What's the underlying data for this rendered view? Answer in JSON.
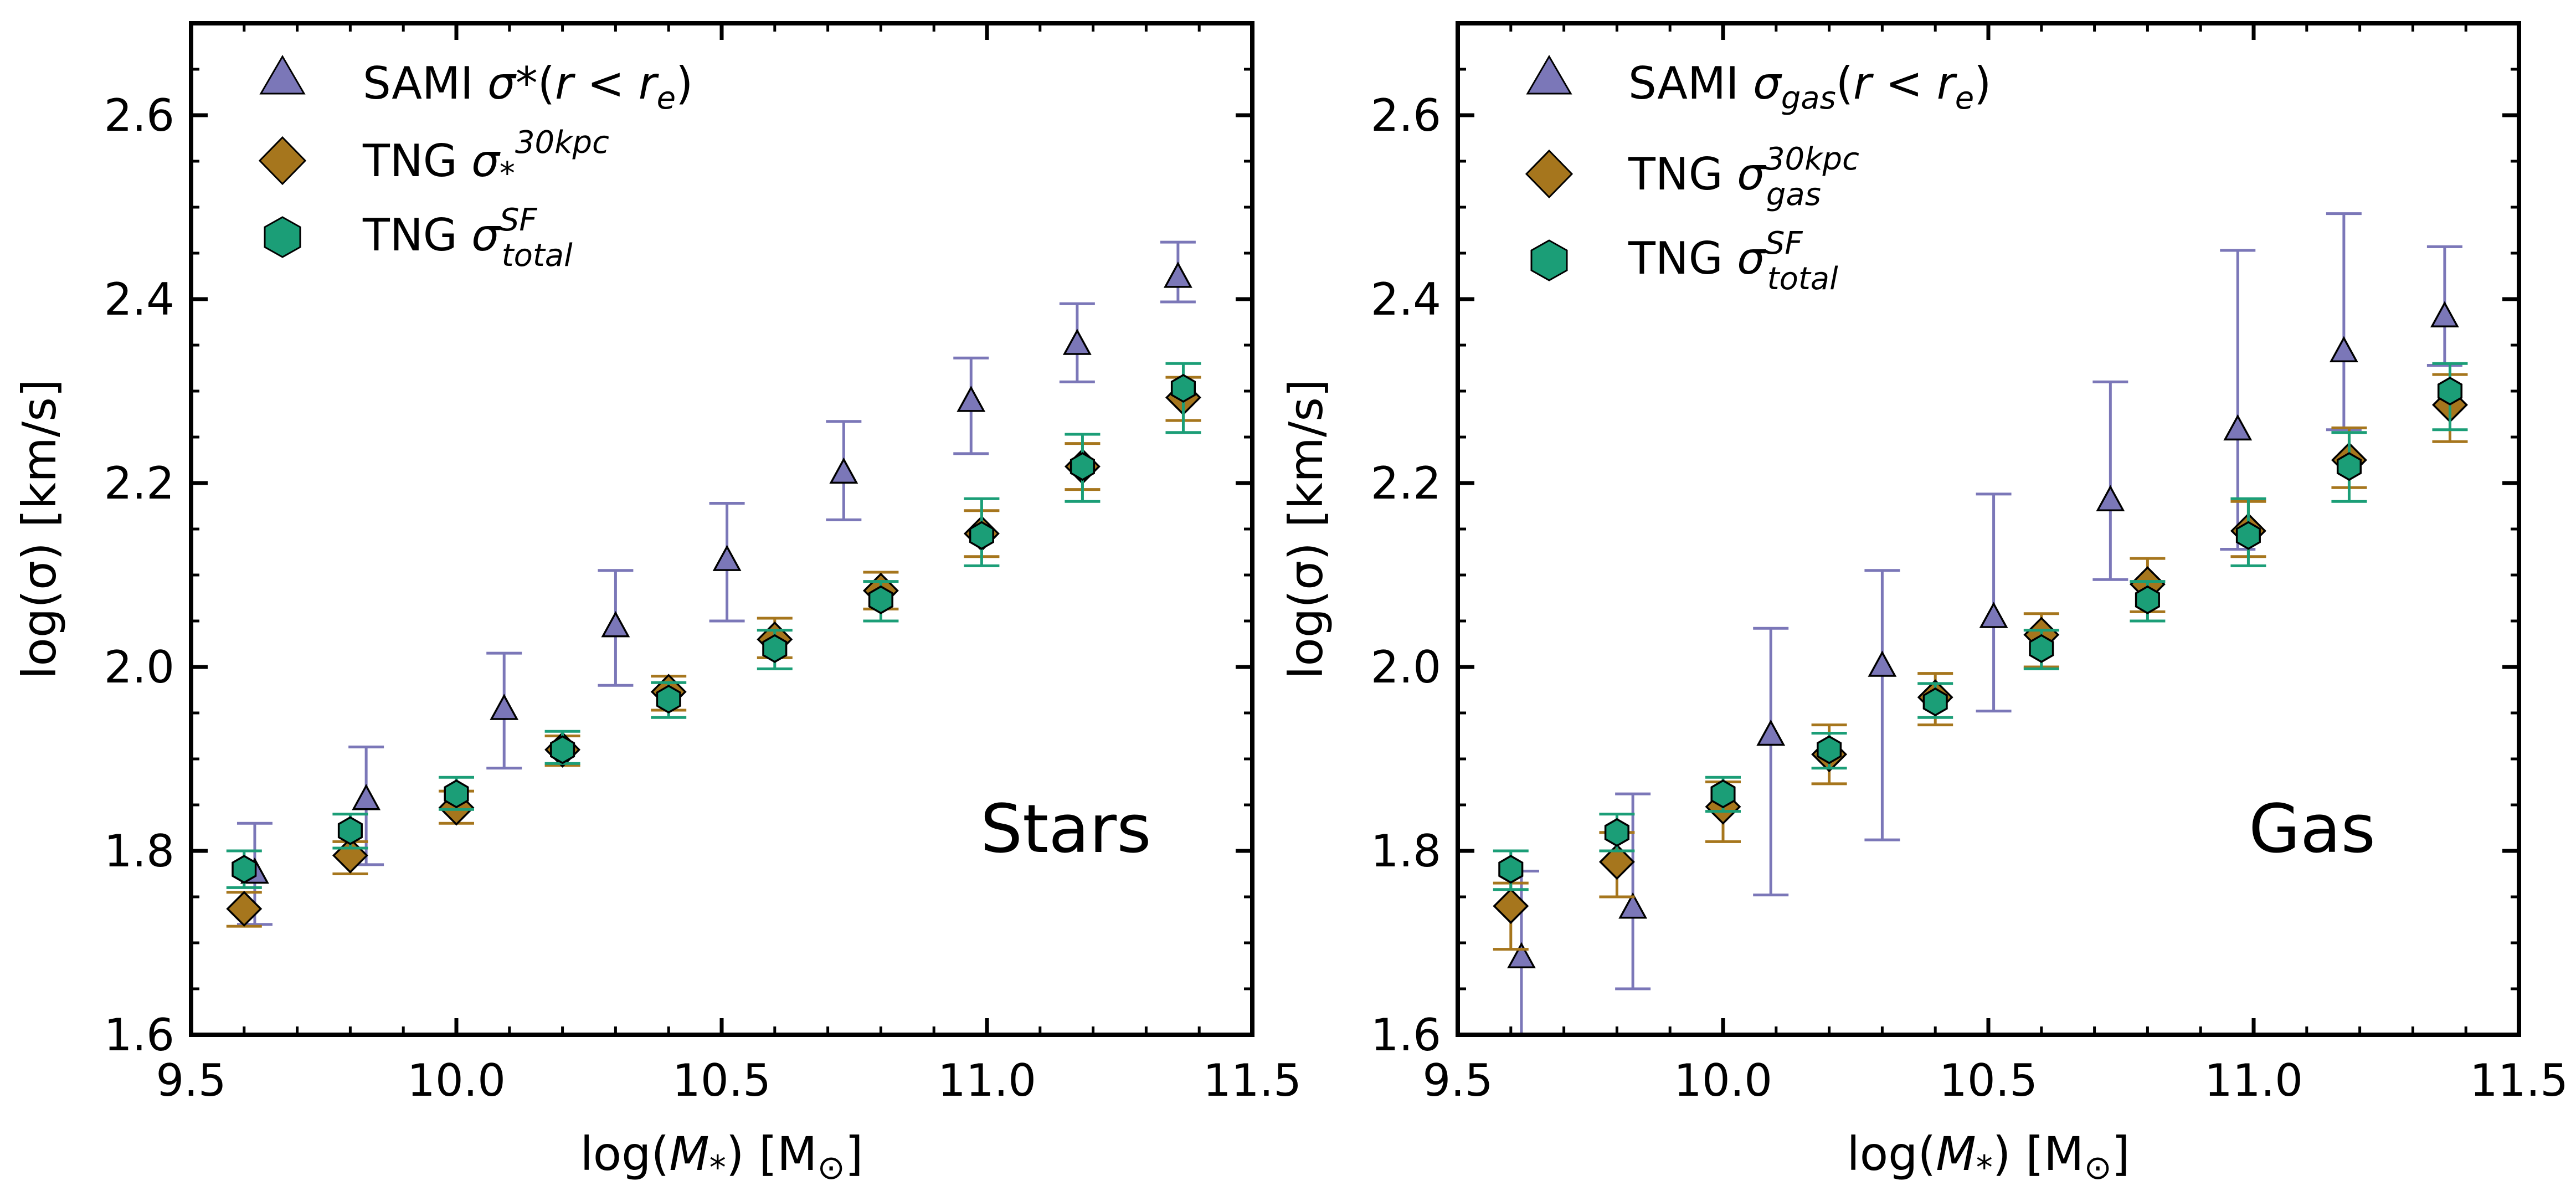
{
  "colors": {
    "sami": "#7b77b8",
    "tng_30kpc": "#a6761d",
    "tng_sf": "#1b9e77"
  },
  "chart_data": [
    {
      "type": "scatter",
      "panel_label": "Stars",
      "xlabel": "log(M*) [M⊙]",
      "ylabel": "log(σ) [km/s]",
      "xlim": [
        9.5,
        11.5
      ],
      "ylim": [
        1.6,
        2.7
      ],
      "xticks": [
        "9.5",
        "10.0",
        "10.5",
        "11.0",
        "11.5"
      ],
      "yticks": [
        "1.6",
        "1.8",
        "2.0",
        "2.2",
        "2.4",
        "2.6"
      ],
      "legend_position": "top-left",
      "series": [
        {
          "name": "SAMI σ*(r < re)",
          "marker": "triangle",
          "points": [
            {
              "x": 9.62,
              "y": 1.775,
              "lo": 1.72,
              "hi": 1.83
            },
            {
              "x": 9.83,
              "y": 1.855,
              "lo": 1.785,
              "hi": 1.913
            },
            {
              "x": 10.09,
              "y": 1.953,
              "lo": 1.89,
              "hi": 2.015
            },
            {
              "x": 10.3,
              "y": 2.043,
              "lo": 1.98,
              "hi": 2.105
            },
            {
              "x": 10.51,
              "y": 2.115,
              "lo": 2.05,
              "hi": 2.178
            },
            {
              "x": 10.73,
              "y": 2.21,
              "lo": 2.16,
              "hi": 2.267
            },
            {
              "x": 10.97,
              "y": 2.288,
              "lo": 2.232,
              "hi": 2.336
            },
            {
              "x": 11.17,
              "y": 2.35,
              "lo": 2.31,
              "hi": 2.395
            },
            {
              "x": 11.36,
              "y": 2.423,
              "lo": 2.397,
              "hi": 2.462
            }
          ]
        },
        {
          "name": "TNG σ*^30kpc",
          "marker": "diamond",
          "points": [
            {
              "x": 9.6,
              "y": 1.737,
              "lo": 1.718,
              "hi": 1.755
            },
            {
              "x": 9.8,
              "y": 1.795,
              "lo": 1.775,
              "hi": 1.81
            },
            {
              "x": 10.0,
              "y": 1.847,
              "lo": 1.83,
              "hi": 1.865
            },
            {
              "x": 10.2,
              "y": 1.91,
              "lo": 1.893,
              "hi": 1.925
            },
            {
              "x": 10.4,
              "y": 1.973,
              "lo": 1.953,
              "hi": 1.99
            },
            {
              "x": 10.6,
              "y": 2.03,
              "lo": 2.01,
              "hi": 2.053
            },
            {
              "x": 10.8,
              "y": 2.083,
              "lo": 2.063,
              "hi": 2.103
            },
            {
              "x": 10.99,
              "y": 2.145,
              "lo": 2.12,
              "hi": 2.17
            },
            {
              "x": 11.18,
              "y": 2.218,
              "lo": 2.193,
              "hi": 2.243
            },
            {
              "x": 11.37,
              "y": 2.293,
              "lo": 2.268,
              "hi": 2.315
            }
          ]
        },
        {
          "name": "TNG σtotal^SF",
          "marker": "hexagon",
          "points": [
            {
              "x": 9.6,
              "y": 1.78,
              "lo": 1.76,
              "hi": 1.8
            },
            {
              "x": 9.8,
              "y": 1.822,
              "lo": 1.803,
              "hi": 1.84
            },
            {
              "x": 10.0,
              "y": 1.862,
              "lo": 1.845,
              "hi": 1.88
            },
            {
              "x": 10.2,
              "y": 1.91,
              "lo": 1.895,
              "hi": 1.93
            },
            {
              "x": 10.4,
              "y": 1.965,
              "lo": 1.945,
              "hi": 1.983
            },
            {
              "x": 10.6,
              "y": 2.02,
              "lo": 1.998,
              "hi": 2.04
            },
            {
              "x": 10.8,
              "y": 2.073,
              "lo": 2.05,
              "hi": 2.093
            },
            {
              "x": 10.99,
              "y": 2.143,
              "lo": 2.11,
              "hi": 2.183
            },
            {
              "x": 11.18,
              "y": 2.218,
              "lo": 2.18,
              "hi": 2.253
            },
            {
              "x": 11.37,
              "y": 2.303,
              "lo": 2.255,
              "hi": 2.33
            }
          ]
        }
      ]
    },
    {
      "type": "scatter",
      "panel_label": "Gas",
      "xlabel": "log(M*) [M⊙]",
      "ylabel": "log(σ) [km/s]",
      "xlim": [
        9.5,
        11.5
      ],
      "ylim": [
        1.6,
        2.7
      ],
      "xticks": [
        "9.5",
        "10.0",
        "10.5",
        "11.0",
        "11.5"
      ],
      "yticks": [
        "1.6",
        "1.8",
        "2.0",
        "2.2",
        "2.4",
        "2.6"
      ],
      "legend_position": "top-left",
      "series": [
        {
          "name": "SAMI σgas(r < re)",
          "marker": "triangle",
          "points": [
            {
              "x": 9.62,
              "y": 1.683,
              "lo": 1.6,
              "hi": 1.778
            },
            {
              "x": 9.83,
              "y": 1.737,
              "lo": 1.65,
              "hi": 1.862
            },
            {
              "x": 10.09,
              "y": 1.925,
              "lo": 1.752,
              "hi": 2.042
            },
            {
              "x": 10.3,
              "y": 2.0,
              "lo": 1.812,
              "hi": 2.105
            },
            {
              "x": 10.51,
              "y": 2.053,
              "lo": 1.952,
              "hi": 2.188
            },
            {
              "x": 10.73,
              "y": 2.18,
              "lo": 2.095,
              "hi": 2.31
            },
            {
              "x": 10.97,
              "y": 2.257,
              "lo": 2.128,
              "hi": 2.453
            },
            {
              "x": 11.17,
              "y": 2.342,
              "lo": 2.258,
              "hi": 2.493
            },
            {
              "x": 11.36,
              "y": 2.38,
              "lo": 2.328,
              "hi": 2.457
            }
          ]
        },
        {
          "name": "TNG σgas^30kpc",
          "marker": "diamond",
          "points": [
            {
              "x": 9.6,
              "y": 1.74,
              "lo": 1.693,
              "hi": 1.765
            },
            {
              "x": 9.8,
              "y": 1.788,
              "lo": 1.75,
              "hi": 1.82
            },
            {
              "x": 10.0,
              "y": 1.848,
              "lo": 1.81,
              "hi": 1.875
            },
            {
              "x": 10.2,
              "y": 1.905,
              "lo": 1.873,
              "hi": 1.937
            },
            {
              "x": 10.4,
              "y": 1.967,
              "lo": 1.937,
              "hi": 1.993
            },
            {
              "x": 10.6,
              "y": 2.035,
              "lo": 2.0,
              "hi": 2.058
            },
            {
              "x": 10.8,
              "y": 2.09,
              "lo": 2.06,
              "hi": 2.118
            },
            {
              "x": 10.99,
              "y": 2.148,
              "lo": 2.12,
              "hi": 2.18
            },
            {
              "x": 11.18,
              "y": 2.225,
              "lo": 2.195,
              "hi": 2.26
            },
            {
              "x": 11.37,
              "y": 2.285,
              "lo": 2.245,
              "hi": 2.318
            }
          ]
        },
        {
          "name": "TNG σtotal^SF",
          "marker": "hexagon",
          "points": [
            {
              "x": 9.6,
              "y": 1.78,
              "lo": 1.758,
              "hi": 1.8
            },
            {
              "x": 9.8,
              "y": 1.82,
              "lo": 1.8,
              "hi": 1.84
            },
            {
              "x": 10.0,
              "y": 1.862,
              "lo": 1.843,
              "hi": 1.88
            },
            {
              "x": 10.2,
              "y": 1.91,
              "lo": 1.89,
              "hi": 1.928
            },
            {
              "x": 10.4,
              "y": 1.962,
              "lo": 1.945,
              "hi": 1.982
            },
            {
              "x": 10.6,
              "y": 2.02,
              "lo": 1.998,
              "hi": 2.04
            },
            {
              "x": 10.8,
              "y": 2.073,
              "lo": 2.05,
              "hi": 2.093
            },
            {
              "x": 10.99,
              "y": 2.143,
              "lo": 2.11,
              "hi": 2.183
            },
            {
              "x": 11.18,
              "y": 2.218,
              "lo": 2.18,
              "hi": 2.255
            },
            {
              "x": 11.37,
              "y": 2.3,
              "lo": 2.258,
              "hi": 2.33
            }
          ]
        }
      ]
    }
  ]
}
